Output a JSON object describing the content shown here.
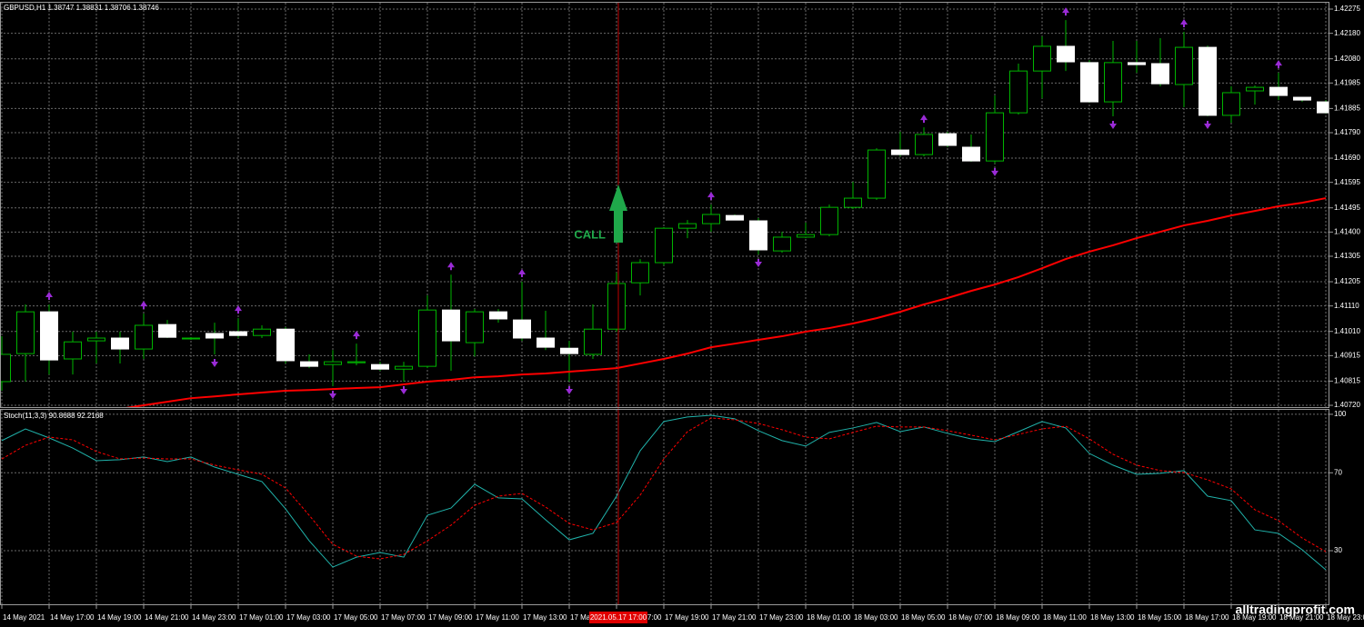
{
  "chart_data": [
    {
      "type": "candlestick",
      "title": "GBPUSD,H1 1.38747 1.38831 1.38706 1.38746",
      "candles": {
        "open": [
          1.40813,
          1.40923,
          1.41087,
          1.40902,
          1.40973,
          1.40984,
          1.40941,
          1.41037,
          1.40984,
          1.41002,
          1.41009,
          1.40994,
          1.41019,
          1.40891,
          1.4088,
          1.40887,
          1.4088,
          1.40862,
          1.40873,
          1.41094,
          1.40966,
          1.41087,
          1.41055,
          1.40984,
          1.40944,
          1.4092,
          1.41019,
          1.41201,
          1.4128,
          1.41415,
          1.41433,
          1.41465,
          1.41444,
          1.41326,
          1.4138,
          1.4139,
          1.41497,
          1.41533,
          1.41722,
          1.41704,
          1.41786,
          1.41733,
          1.41679,
          1.41868,
          1.42032,
          1.42129,
          1.42065,
          1.41911,
          1.42065,
          1.42061,
          1.41979,
          1.42125,
          1.41858,
          1.41954,
          1.41968,
          1.41929,
          1.41911
        ],
        "high": [
          1.40991,
          1.41116,
          1.41116,
          1.41009,
          1.41009,
          1.41009,
          1.4108,
          1.41055,
          1.40987,
          1.41044,
          1.41062,
          1.41034,
          1.41027,
          1.4092,
          1.40937,
          1.40962,
          1.40891,
          1.40891,
          1.41151,
          1.41233,
          1.41098,
          1.41098,
          1.41205,
          1.41091,
          1.40973,
          1.41116,
          1.41241,
          1.41294,
          1.41419,
          1.41447,
          1.41508,
          1.41469,
          1.41455,
          1.41401,
          1.41437,
          1.41508,
          1.41597,
          1.41729,
          1.41793,
          1.41811,
          1.41793,
          1.41783,
          1.41936,
          1.42061,
          1.42168,
          1.42232,
          1.42075,
          1.4215,
          1.4215,
          1.42161,
          1.42186,
          1.42132,
          1.41972,
          1.41975,
          1.42025,
          1.41929,
          1.41918
        ],
        "low": [
          1.40777,
          1.40813,
          1.40841,
          1.40841,
          1.40884,
          1.40884,
          1.40902,
          1.40984,
          1.40977,
          1.4092,
          1.40984,
          1.40984,
          1.40884,
          1.40866,
          1.40795,
          1.40877,
          1.40855,
          1.40813,
          1.40866,
          1.40855,
          1.40912,
          1.41044,
          1.40973,
          1.40937,
          1.40813,
          1.40902,
          1.41009,
          1.41151,
          1.41269,
          1.41376,
          1.41401,
          1.41447,
          1.41312,
          1.41319,
          1.41376,
          1.41383,
          1.4149,
          1.41526,
          1.41697,
          1.41697,
          1.41733,
          1.41676,
          1.41669,
          1.41861,
          1.41925,
          1.42032,
          1.41908,
          1.41854,
          1.42025,
          1.41972,
          1.4189,
          1.41854,
          1.41829,
          1.419,
          1.41918,
          1.41911,
          1.41865
        ],
        "close": [
          1.4092,
          1.41087,
          1.40898,
          1.40969,
          1.40984,
          1.40941,
          1.41034,
          1.40987,
          1.40984,
          1.40984,
          1.40994,
          1.41019,
          1.40895,
          1.40873,
          1.40891,
          1.40891,
          1.40862,
          1.40873,
          1.41094,
          1.40973,
          1.41087,
          1.41059,
          1.40984,
          1.40948,
          1.40923,
          1.41019,
          1.41198,
          1.4128,
          1.41415,
          1.41433,
          1.41469,
          1.41447,
          1.4133,
          1.4138,
          1.4139,
          1.41497,
          1.41533,
          1.41722,
          1.41704,
          1.41783,
          1.4174,
          1.41679,
          1.41868,
          1.42032,
          1.42129,
          1.42068,
          1.41911,
          1.42065,
          1.42057,
          1.41982,
          1.42125,
          1.41858,
          1.41947,
          1.41968,
          1.41936,
          1.41918,
          1.41868
        ]
      },
      "bull_color": "#00b400",
      "bear_color": "#ffffff",
      "series": [
        {
          "color": "#ff0000",
          "values": [
            1.4067,
            1.40677,
            1.40684,
            1.40691,
            1.40698,
            1.40706,
            1.4072,
            1.40734,
            1.40748,
            1.40755,
            1.40763,
            1.4077,
            1.40777,
            1.4078,
            1.40784,
            1.40788,
            1.40791,
            1.40802,
            1.40813,
            1.4082,
            1.4083,
            1.40834,
            1.40841,
            1.40845,
            1.40852,
            1.40859,
            1.40866,
            1.40884,
            1.40902,
            1.40923,
            1.40948,
            1.40962,
            1.40977,
            1.40991,
            1.41009,
            1.41023,
            1.41041,
            1.41062,
            1.41087,
            1.41116,
            1.41141,
            1.41169,
            1.41194,
            1.41223,
            1.41258,
            1.41294,
            1.41323,
            1.41348,
            1.41376,
            1.41401,
            1.41426,
            1.41444,
            1.41465,
            1.41483,
            1.41501,
            1.41515,
            1.41533
          ]
        }
      ],
      "fractal_color": "#9a2bd6",
      "fractals_up": [
        null,
        null,
        1.41116,
        null,
        null,
        null,
        1.4108,
        null,
        null,
        null,
        1.41062,
        null,
        null,
        null,
        null,
        1.40962,
        null,
        null,
        null,
        1.41233,
        null,
        null,
        1.41205,
        null,
        null,
        null,
        null,
        null,
        null,
        null,
        1.41508,
        null,
        null,
        null,
        null,
        null,
        null,
        null,
        null,
        1.41811,
        null,
        null,
        null,
        null,
        null,
        1.42232,
        null,
        null,
        null,
        null,
        1.42186,
        null,
        null,
        null,
        1.42025,
        null,
        null
      ],
      "fractals_down": [
        null,
        null,
        null,
        null,
        null,
        null,
        null,
        null,
        null,
        1.4092,
        null,
        null,
        null,
        null,
        1.40795,
        null,
        null,
        1.40813,
        null,
        null,
        null,
        null,
        null,
        null,
        1.40813,
        null,
        null,
        null,
        null,
        null,
        null,
        null,
        1.41312,
        null,
        null,
        null,
        null,
        null,
        null,
        null,
        null,
        null,
        1.41669,
        null,
        null,
        null,
        null,
        1.41854,
        null,
        null,
        null,
        1.41854,
        null,
        null,
        null,
        null,
        null
      ],
      "annotation": "CALL",
      "ylim": [
        1.40713,
        1.423
      ],
      "yticks": [
        1.42275,
        {
          "value": 1.4218,
          "label": "1.42180"
        },
        {
          "value": 1.4208,
          "label": "1.42080"
        },
        1.41985,
        1.41885,
        {
          "value": 1.4179,
          "label": "1.41790"
        },
        {
          "value": 1.4169,
          "label": "1.41690"
        },
        1.41595,
        1.41495,
        {
          "value": 1.414,
          "label": "1.41400"
        },
        1.41305,
        1.41205,
        {
          "value": 1.4111,
          "label": "1.41110"
        },
        {
          "value": 1.4101,
          "label": "1.41010"
        },
        1.40915,
        1.40815,
        {
          "value": 1.4072,
          "label": "1.40720"
        }
      ],
      "grid": true
    },
    {
      "type": "line",
      "title": "Stoch(11,3,3) 90.8688 92.2168",
      "categories": [
        "14 May 2021",
        null,
        "14 May 17:00",
        null,
        "14 May 19:00",
        null,
        "14 May 21:00",
        null,
        "14 May 23:00",
        null,
        "17 May 01:00",
        null,
        "17 May 03:00",
        null,
        "17 May 05:00",
        null,
        "17 May 07:00",
        null,
        "17 May 09:00",
        null,
        "17 May 11:00",
        null,
        "17 May 13:00",
        null,
        "17 May 15:00",
        null,
        "17 May 17:00",
        null,
        "17 May 19:00",
        null,
        "17 May 21:00",
        null,
        "17 May 23:00",
        null,
        "18 May 01:00",
        null,
        "18 May 03:00",
        null,
        "18 May 05:00",
        null,
        "18 May 07:00",
        null,
        "18 May 09:00",
        null,
        "18 May 11:00",
        null,
        "18 May 13:00",
        null,
        "18 May 15:00",
        null,
        "18 May 17:00",
        null,
        "18 May 19:00",
        null,
        "18 May 21:00",
        null,
        "18 May 23:00"
      ],
      "series": [
        {
          "color": "#20b2aa",
          "values": [
            86.5,
            92.5,
            87.9,
            82.7,
            76.2,
            76.7,
            78.1,
            75.7,
            78.1,
            72.9,
            69.2,
            65.5,
            51.5,
            35.1,
            21.6,
            26.7,
            29.1,
            26.7,
            48.2,
            51.9,
            64.1,
            57.1,
            56.6,
            45.9,
            35.6,
            38.9,
            58.0,
            81.3,
            96.3,
            98.6,
            99.5,
            97.7,
            91.6,
            86.5,
            83.7,
            90.7,
            93.0,
            95.8,
            91.1,
            93.5,
            90.2,
            87.4,
            86.0,
            91.1,
            96.3,
            93.0,
            79.9,
            73.9,
            69.2,
            69.7,
            71.1,
            58.0,
            55.7,
            40.7,
            38.9,
            30.5,
            20.2
          ]
        },
        {
          "color": "#ff0000",
          "dashed": true,
          "values": [
            77.1,
            84.1,
            88.3,
            86.9,
            80.9,
            77.1,
            77.6,
            77.1,
            77.1,
            73.9,
            71.5,
            69.2,
            62.2,
            48.2,
            33.3,
            27.2,
            25.8,
            28.1,
            35.1,
            43.1,
            53.3,
            58.0,
            59.4,
            52.4,
            44.0,
            40.7,
            44.5,
            58.5,
            77.1,
            91.1,
            98.1,
            97.2,
            95.3,
            92.1,
            88.3,
            87.4,
            90.7,
            93.9,
            93.5,
            93.5,
            91.6,
            89.3,
            86.9,
            89.7,
            92.5,
            93.9,
            87.4,
            79.5,
            73.9,
            71.1,
            70.1,
            66.4,
            61.7,
            51.0,
            45.4,
            36.5,
            29.5
          ]
        }
      ],
      "ylim": [
        2.5,
        102.3
      ],
      "yticks": [
        100,
        70,
        30
      ],
      "grid": true
    }
  ],
  "cursor": {
    "label": "2021.05.17 17:00",
    "category": "17 May 17:00"
  },
  "watermark": "alltradingprofit.com"
}
